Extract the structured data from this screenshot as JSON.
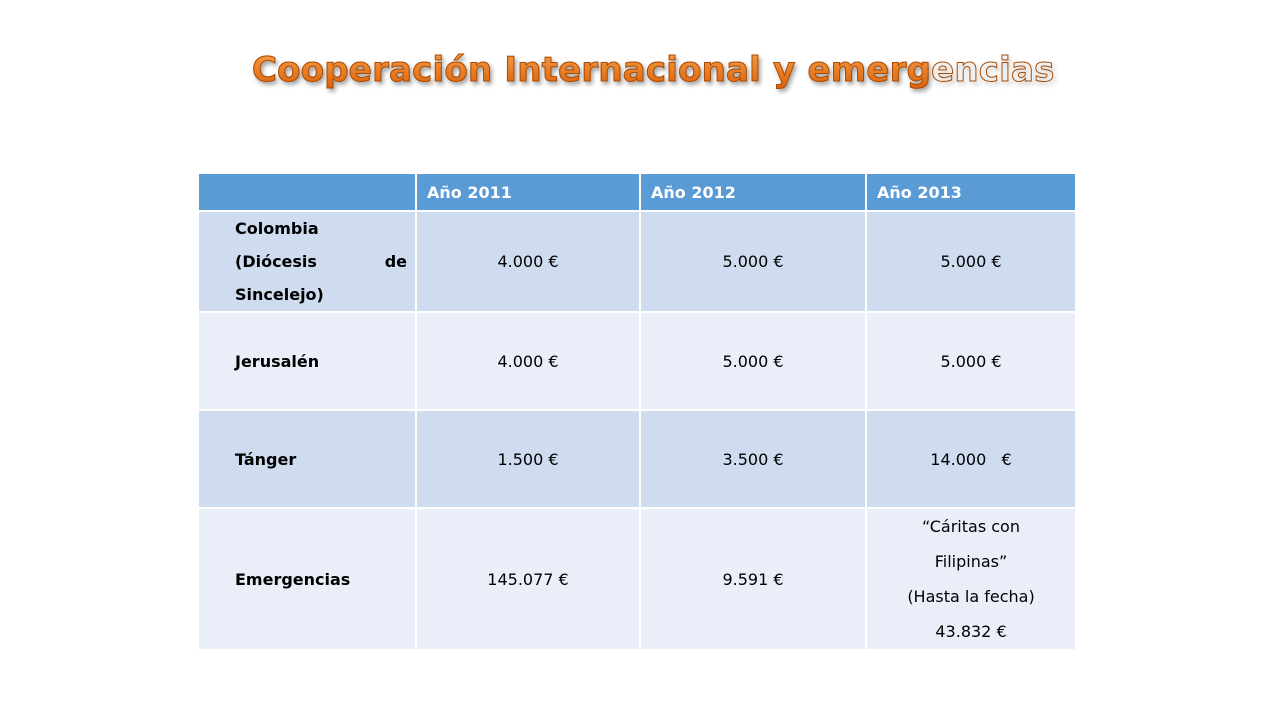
{
  "title": "Cooperación Internacional y emergencias",
  "table": {
    "headers": [
      "",
      "Año 2011",
      "Año 2012",
      "Año 2013"
    ],
    "rows": [
      {
        "label": "Colombia (Diócesis de Sincelejo)",
        "label_lines": [
          "Colombia",
          "(Diócesis de",
          "Sincelejo)"
        ],
        "values": [
          "4.000 €",
          "5.000 €",
          "5.000 €"
        ]
      },
      {
        "label": "Jerusalén",
        "values": [
          "4.000 €",
          "5.000 €",
          "5.000 €"
        ]
      },
      {
        "label": "Tánger",
        "values": [
          "1.500 €",
          "3.500 €",
          "14.000   €"
        ]
      },
      {
        "label": "Emergencias",
        "values": [
          "145.077 €",
          "9.591 €"
        ],
        "value_2013_lines": [
          "“Cáritas con",
          "Filipinas”",
          "(Hasta la fecha)",
          "43.832 €"
        ]
      }
    ]
  },
  "colors": {
    "header_bg": "#5b9bd5",
    "row_odd_bg": "#cfdbef",
    "row_even_bg": "#e9eef8",
    "title_color": "#e46c0a"
  }
}
